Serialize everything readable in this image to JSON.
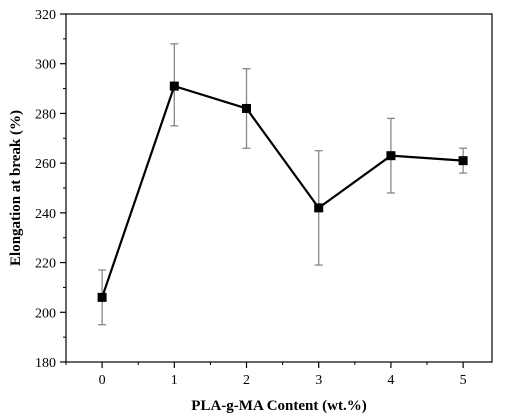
{
  "chart_data": {
    "type": "line",
    "xlabel": "PLA-g-MA Content (wt.%)",
    "ylabel": "Elongation at break (%)",
    "xlim": [
      -0.5,
      5.4
    ],
    "ylim": [
      180,
      320
    ],
    "xticks": [
      0,
      1,
      2,
      3,
      4,
      5
    ],
    "yticks": [
      180,
      200,
      220,
      240,
      260,
      280,
      300,
      320
    ],
    "grid": false,
    "legend": "none",
    "marker": "square",
    "line_color": "#000000",
    "errorbar_color": "#888888",
    "series": [
      {
        "x": [
          0,
          1,
          2,
          3,
          4,
          5
        ],
        "y": [
          206,
          291,
          282,
          242,
          263,
          261
        ],
        "error_low": [
          195,
          275,
          266,
          219,
          248,
          256
        ],
        "error_high": [
          217,
          308,
          298,
          265,
          278,
          266
        ]
      }
    ]
  }
}
